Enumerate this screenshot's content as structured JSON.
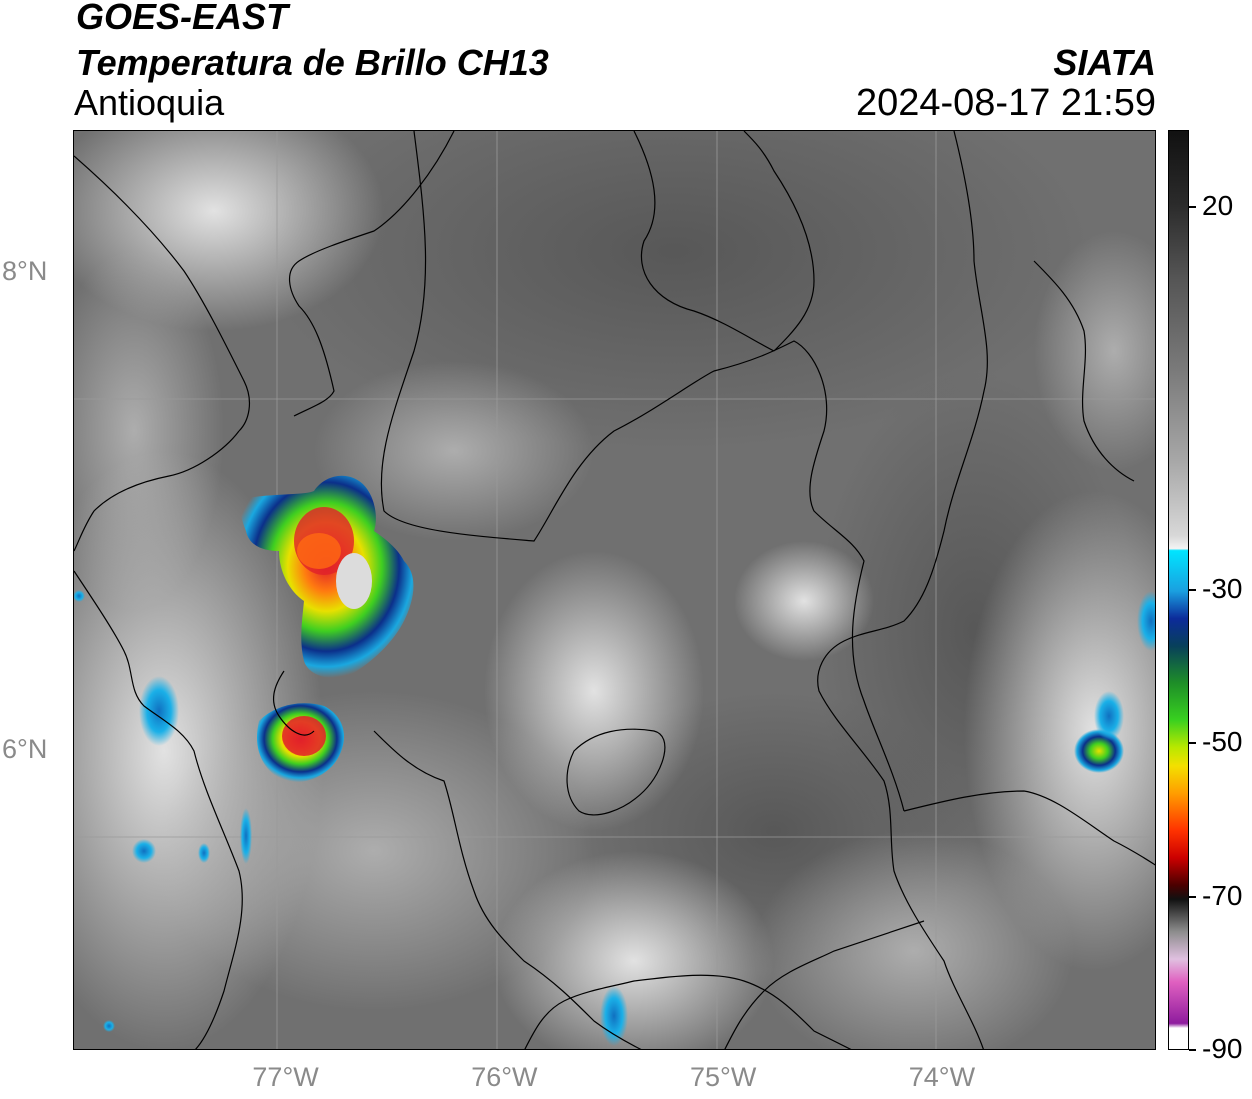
{
  "header": {
    "satellite": "GOES-EAST",
    "product": "Temperatura de Brillo CH13",
    "region": "Antioquia",
    "agency": "SIATA",
    "datetime": "2024-08-17 21:59"
  },
  "map": {
    "lat_range": [
      4.75,
      8.6
    ],
    "lon_range": [
      -77.98,
      -73.03
    ],
    "lat_labels": [
      {
        "value": 8,
        "text": "8°N"
      },
      {
        "value": 6,
        "text": "6°N"
      }
    ],
    "lon_labels": [
      {
        "value": -77,
        "text": "77°W"
      },
      {
        "value": -76,
        "text": "76°W"
      },
      {
        "value": -75,
        "text": "75°W"
      },
      {
        "value": -74,
        "text": "74°W"
      }
    ],
    "background_color": "#6e6e6e",
    "border_color": "#000000",
    "grid": true
  },
  "colorbar": {
    "range": [
      -90,
      30
    ],
    "ticks": [
      {
        "value": 20,
        "text": "20"
      },
      {
        "value": -30,
        "text": "-30"
      },
      {
        "value": -50,
        "text": "-50"
      },
      {
        "value": -70,
        "text": "-70"
      },
      {
        "value": -90,
        "text": "-90"
      }
    ]
  }
}
